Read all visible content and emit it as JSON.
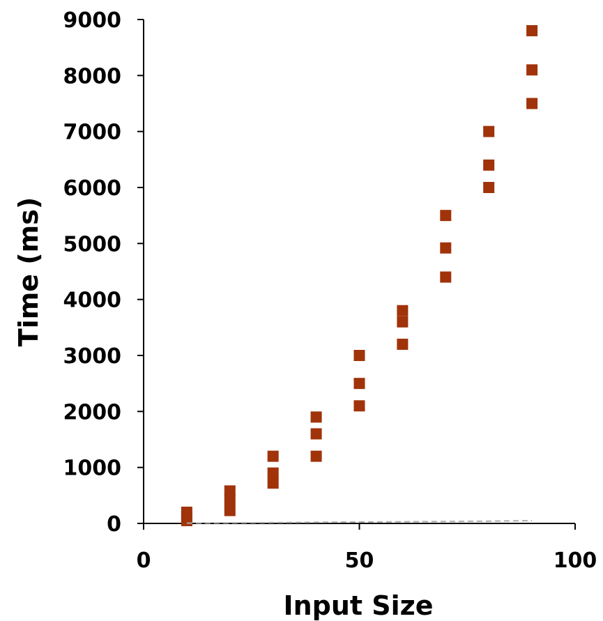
{
  "chart_data": {
    "type": "scatter",
    "title": "",
    "xlabel": "Input Size",
    "ylabel": "Time (ms)",
    "xlim": [
      0,
      100
    ],
    "ylim": [
      0,
      9000
    ],
    "x_ticks": [
      "0",
      "50",
      "100"
    ],
    "y_ticks": [
      "0",
      "1000",
      "2000",
      "3000",
      "4000",
      "5000",
      "6000",
      "7000",
      "8000",
      "9000"
    ],
    "grid": false,
    "legend": "none",
    "series": [
      {
        "marker": "square",
        "color": "#a0330a",
        "points": [
          {
            "x": 10,
            "y": 50
          },
          {
            "x": 10,
            "y": 130
          },
          {
            "x": 10,
            "y": 200
          },
          {
            "x": 20,
            "y": 230
          },
          {
            "x": 20,
            "y": 420
          },
          {
            "x": 20,
            "y": 580
          },
          {
            "x": 30,
            "y": 720
          },
          {
            "x": 30,
            "y": 900
          },
          {
            "x": 30,
            "y": 1200
          },
          {
            "x": 40,
            "y": 1200
          },
          {
            "x": 40,
            "y": 1600
          },
          {
            "x": 40,
            "y": 1900
          },
          {
            "x": 50,
            "y": 2100
          },
          {
            "x": 50,
            "y": 2500
          },
          {
            "x": 50,
            "y": 3000
          },
          {
            "x": 60,
            "y": 3200
          },
          {
            "x": 60,
            "y": 3600
          },
          {
            "x": 60,
            "y": 3800
          },
          {
            "x": 70,
            "y": 4400
          },
          {
            "x": 70,
            "y": 4920
          },
          {
            "x": 70,
            "y": 5500
          },
          {
            "x": 80,
            "y": 6000
          },
          {
            "x": 80,
            "y": 6400
          },
          {
            "x": 80,
            "y": 7000
          },
          {
            "x": 90,
            "y": 7500
          },
          {
            "x": 90,
            "y": 8100
          },
          {
            "x": 90,
            "y": 8800
          }
        ]
      },
      {
        "style": "dashed-line",
        "color": "#aaaaaa",
        "points": [
          {
            "x": 10,
            "y": 5
          },
          {
            "x": 20,
            "y": 10
          },
          {
            "x": 30,
            "y": 15
          },
          {
            "x": 40,
            "y": 20
          },
          {
            "x": 50,
            "y": 25
          },
          {
            "x": 60,
            "y": 30
          },
          {
            "x": 70,
            "y": 35
          },
          {
            "x": 80,
            "y": 40
          },
          {
            "x": 90,
            "y": 50
          }
        ]
      }
    ]
  }
}
